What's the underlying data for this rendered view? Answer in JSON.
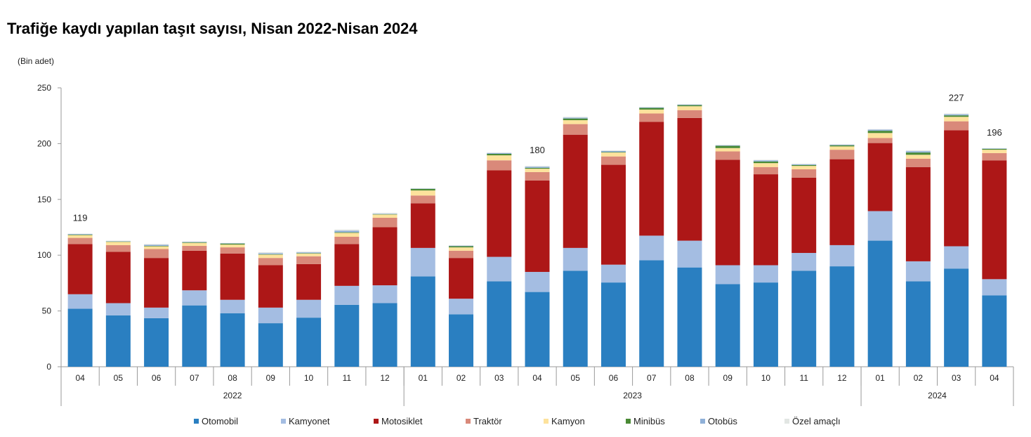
{
  "chart_data": {
    "type": "bar",
    "stacked": true,
    "title": "Trafiğe kaydı yapılan taşıt sayısı, Nisan 2022-Nisan 2024",
    "ylabel": "(Bin adet)",
    "xlabel": "",
    "ylim": [
      0,
      250
    ],
    "yticks": [
      0,
      50,
      100,
      150,
      200,
      250
    ],
    "grid": false,
    "legend_position": "bottom",
    "categories": [
      "04",
      "05",
      "06",
      "07",
      "08",
      "09",
      "10",
      "11",
      "12",
      "01",
      "02",
      "03",
      "04",
      "05",
      "06",
      "07",
      "08",
      "09",
      "10",
      "11",
      "12",
      "01",
      "02",
      "03",
      "04"
    ],
    "year_groups": [
      {
        "label": "2022",
        "count": 9
      },
      {
        "label": "2023",
        "count": 12
      },
      {
        "label": "2024",
        "count": 4
      }
    ],
    "series": [
      {
        "name": "Otomobil",
        "color": "#2a7fc1",
        "values": [
          52,
          46,
          43.5,
          55,
          48,
          39,
          44,
          55.5,
          57,
          81,
          47,
          76.5,
          67,
          86,
          75.5,
          95.5,
          89,
          74,
          75.5,
          86,
          90,
          113,
          76.5,
          88,
          64
        ]
      },
      {
        "name": "Kamyonet",
        "color": "#a4bde2",
        "values": [
          13,
          11,
          9.5,
          13.5,
          12,
          14,
          16,
          17,
          16,
          25.5,
          14,
          22,
          18,
          20.5,
          16,
          22,
          24,
          17,
          15.5,
          16,
          19,
          26.5,
          18,
          20,
          14.5
        ]
      },
      {
        "name": "Motosiklet",
        "color": "#ad1717",
        "values": [
          45,
          46,
          44.5,
          35.5,
          41.5,
          38,
          32,
          37.5,
          52,
          40,
          36.5,
          77.5,
          82,
          101.5,
          89.5,
          102,
          110,
          94.5,
          81.5,
          67.5,
          77,
          61,
          84.5,
          104,
          106.5
        ]
      },
      {
        "name": "Traktör",
        "color": "#d9897a",
        "values": [
          5.5,
          6,
          8,
          4.3,
          5.5,
          6.5,
          7,
          6.5,
          8.5,
          7,
          6.5,
          9,
          7.5,
          9.5,
          7.5,
          7.5,
          7,
          7.5,
          6.5,
          7.5,
          8.5,
          4.5,
          7.5,
          8,
          6.5
        ]
      },
      {
        "name": "Kamyon",
        "color": "#fde29c",
        "values": [
          2.5,
          3,
          2.5,
          2.7,
          2.5,
          3,
          2.5,
          3.5,
          3,
          4.5,
          3,
          4.5,
          3,
          3.5,
          3.5,
          3.5,
          3.5,
          3,
          3.5,
          3,
          3,
          4.5,
          3.5,
          4,
          3
        ]
      },
      {
        "name": "Minibüs",
        "color": "#4a8a35",
        "values": [
          0.4,
          0.3,
          0.3,
          0.5,
          1,
          0.4,
          0.3,
          0.5,
          0.3,
          1.5,
          1,
          1.3,
          0.8,
          1.5,
          0.4,
          1.5,
          1,
          2,
          1.5,
          0.8,
          1,
          2,
          2,
          1.3,
          0.8
        ]
      },
      {
        "name": "Otobüs",
        "color": "#8fb0d8",
        "values": [
          0.6,
          0.3,
          1,
          0.3,
          0.2,
          0.8,
          0.7,
          1.5,
          0.3,
          0.3,
          0.5,
          0.8,
          1,
          0.8,
          1,
          0.5,
          0.5,
          0.5,
          1,
          0.7,
          0.5,
          1,
          1.2,
          1,
          0.5
        ]
      },
      {
        "name": "Özel amaçlı",
        "color": "#e2e6e3",
        "values": [
          0.3,
          0.4,
          0.7,
          0.7,
          0.3,
          1,
          0.7,
          1,
          0.9,
          0.2,
          0.5,
          0.4,
          0.7,
          0.7,
          0.6,
          0.5,
          0.5,
          0.5,
          0.5,
          0.5,
          0.5,
          0.5,
          0.8,
          0.7,
          0.2
        ]
      }
    ],
    "data_labels": [
      {
        "index": 0,
        "text": "119"
      },
      {
        "index": 12,
        "text": "180"
      },
      {
        "index": 23,
        "text": "227"
      },
      {
        "index": 24,
        "text": "196"
      }
    ]
  }
}
